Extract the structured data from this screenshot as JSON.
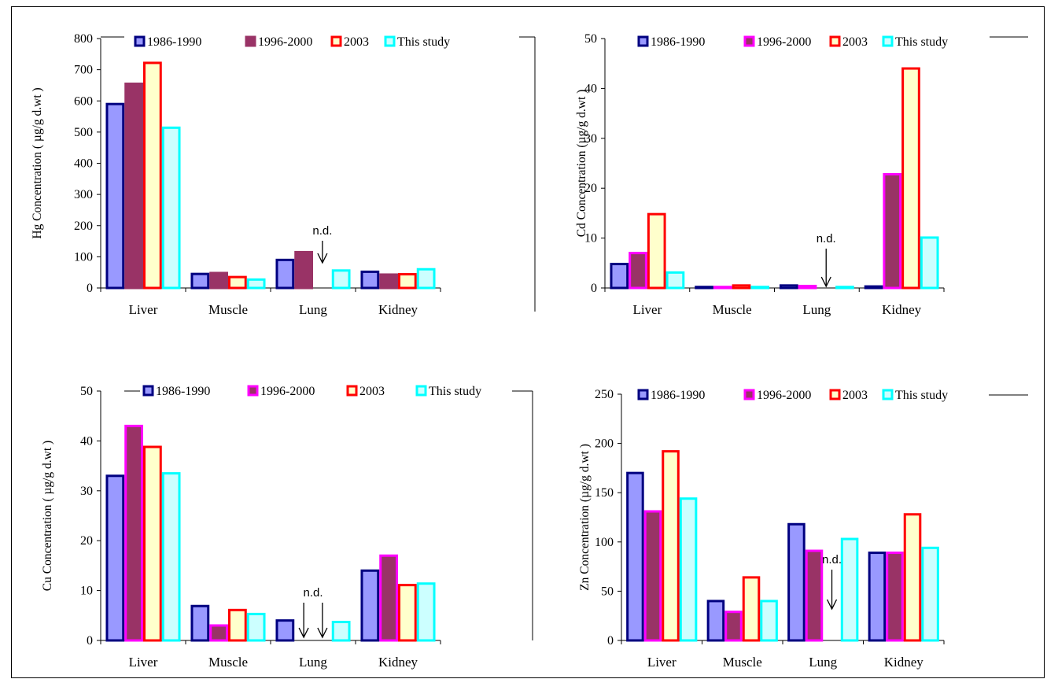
{
  "chart_data": [
    {
      "type": "bar",
      "ylabel": "Hg Concentration ( µg/g d.wt )",
      "categories": [
        "Liver",
        "Muscle",
        "Lung",
        "Kidney"
      ],
      "ylim": [
        0,
        800
      ],
      "yticks": [
        0,
        100,
        200,
        300,
        400,
        500,
        600,
        700,
        800
      ],
      "series": [
        {
          "name": "1986-1990",
          "values": [
            590,
            45,
            90,
            52
          ]
        },
        {
          "name": "1996-2000",
          "values": [
            655,
            48,
            115,
            43
          ]
        },
        {
          "name": "2003",
          "values": [
            722,
            35,
            null,
            44
          ]
        },
        {
          "name": "This study",
          "values": [
            514,
            27,
            56,
            60
          ]
        }
      ],
      "annotation": {
        "text": "n.d.",
        "category": 2,
        "series": [
          2
        ]
      }
    },
    {
      "type": "bar",
      "ylabel": "Cd Concentration (µg/g d.wt )",
      "categories": [
        "Liver",
        "Muscle",
        "Lung",
        "Kidney"
      ],
      "ylim": [
        0,
        50
      ],
      "yticks": [
        0,
        10,
        20,
        30,
        40,
        50
      ],
      "series": [
        {
          "name": "1986-1990",
          "values": [
            4.8,
            0.2,
            0.5,
            0.3
          ]
        },
        {
          "name": "1996-2000",
          "values": [
            7.0,
            0.2,
            0.4,
            22.8
          ]
        },
        {
          "name": "2003",
          "values": [
            14.8,
            0.5,
            null,
            44.0
          ]
        },
        {
          "name": "This study",
          "values": [
            3.1,
            0.2,
            0.2,
            10.1
          ]
        }
      ],
      "annotation": {
        "text": "n.d.",
        "category": 2,
        "series": [
          2
        ]
      }
    },
    {
      "type": "bar",
      "ylabel": "Cu  Concentration ( µg/g d.wt )",
      "categories": [
        "Liver",
        "Muscle",
        "Lung",
        "Kidney"
      ],
      "ylim": [
        0,
        50
      ],
      "yticks": [
        0,
        10,
        20,
        30,
        40,
        50
      ],
      "series": [
        {
          "name": "1986-1990",
          "values": [
            33.0,
            6.9,
            4.0,
            14.0
          ]
        },
        {
          "name": "1996-2000",
          "values": [
            43.0,
            3.0,
            null,
            17.0
          ]
        },
        {
          "name": "2003",
          "values": [
            38.8,
            6.1,
            null,
            11.1
          ]
        },
        {
          "name": "This study",
          "values": [
            33.5,
            5.3,
            3.7,
            11.4
          ]
        }
      ],
      "annotation": {
        "text": "n.d.",
        "category": 2,
        "series": [
          1,
          2
        ]
      }
    },
    {
      "type": "bar",
      "ylabel": "Zn Concentration (µg/g d.wt )",
      "categories": [
        "Liver",
        "Muscle",
        "Lung",
        "Kidney"
      ],
      "ylim": [
        0,
        250
      ],
      "yticks": [
        0,
        50,
        100,
        150,
        200,
        250
      ],
      "series": [
        {
          "name": "1986-1990",
          "values": [
            170,
            40,
            118,
            89
          ]
        },
        {
          "name": "1996-2000",
          "values": [
            131,
            29,
            91,
            89
          ]
        },
        {
          "name": "2003",
          "values": [
            192,
            64,
            null,
            128
          ]
        },
        {
          "name": "This study",
          "values": [
            144,
            40,
            103,
            94
          ]
        }
      ],
      "annotation": {
        "text": "n.d.",
        "category": 2,
        "series": [
          2
        ]
      }
    }
  ],
  "colors": {
    "p1": [
      {
        "fill": "#9999ff",
        "stroke": "#000080"
      },
      {
        "fill": "#993366",
        "stroke": "#993366"
      },
      {
        "fill": "#ffffcc",
        "stroke": "#ff0000"
      },
      {
        "fill": "#ccffff",
        "stroke": "#00ffff"
      }
    ],
    "p2": [
      {
        "fill": "#9999ff",
        "stroke": "#000080"
      },
      {
        "fill": "#993366",
        "stroke": "#ff00ff"
      },
      {
        "fill": "#ffffcc",
        "stroke": "#ff0000"
      },
      {
        "fill": "#ccffff",
        "stroke": "#00ffff"
      }
    ]
  }
}
